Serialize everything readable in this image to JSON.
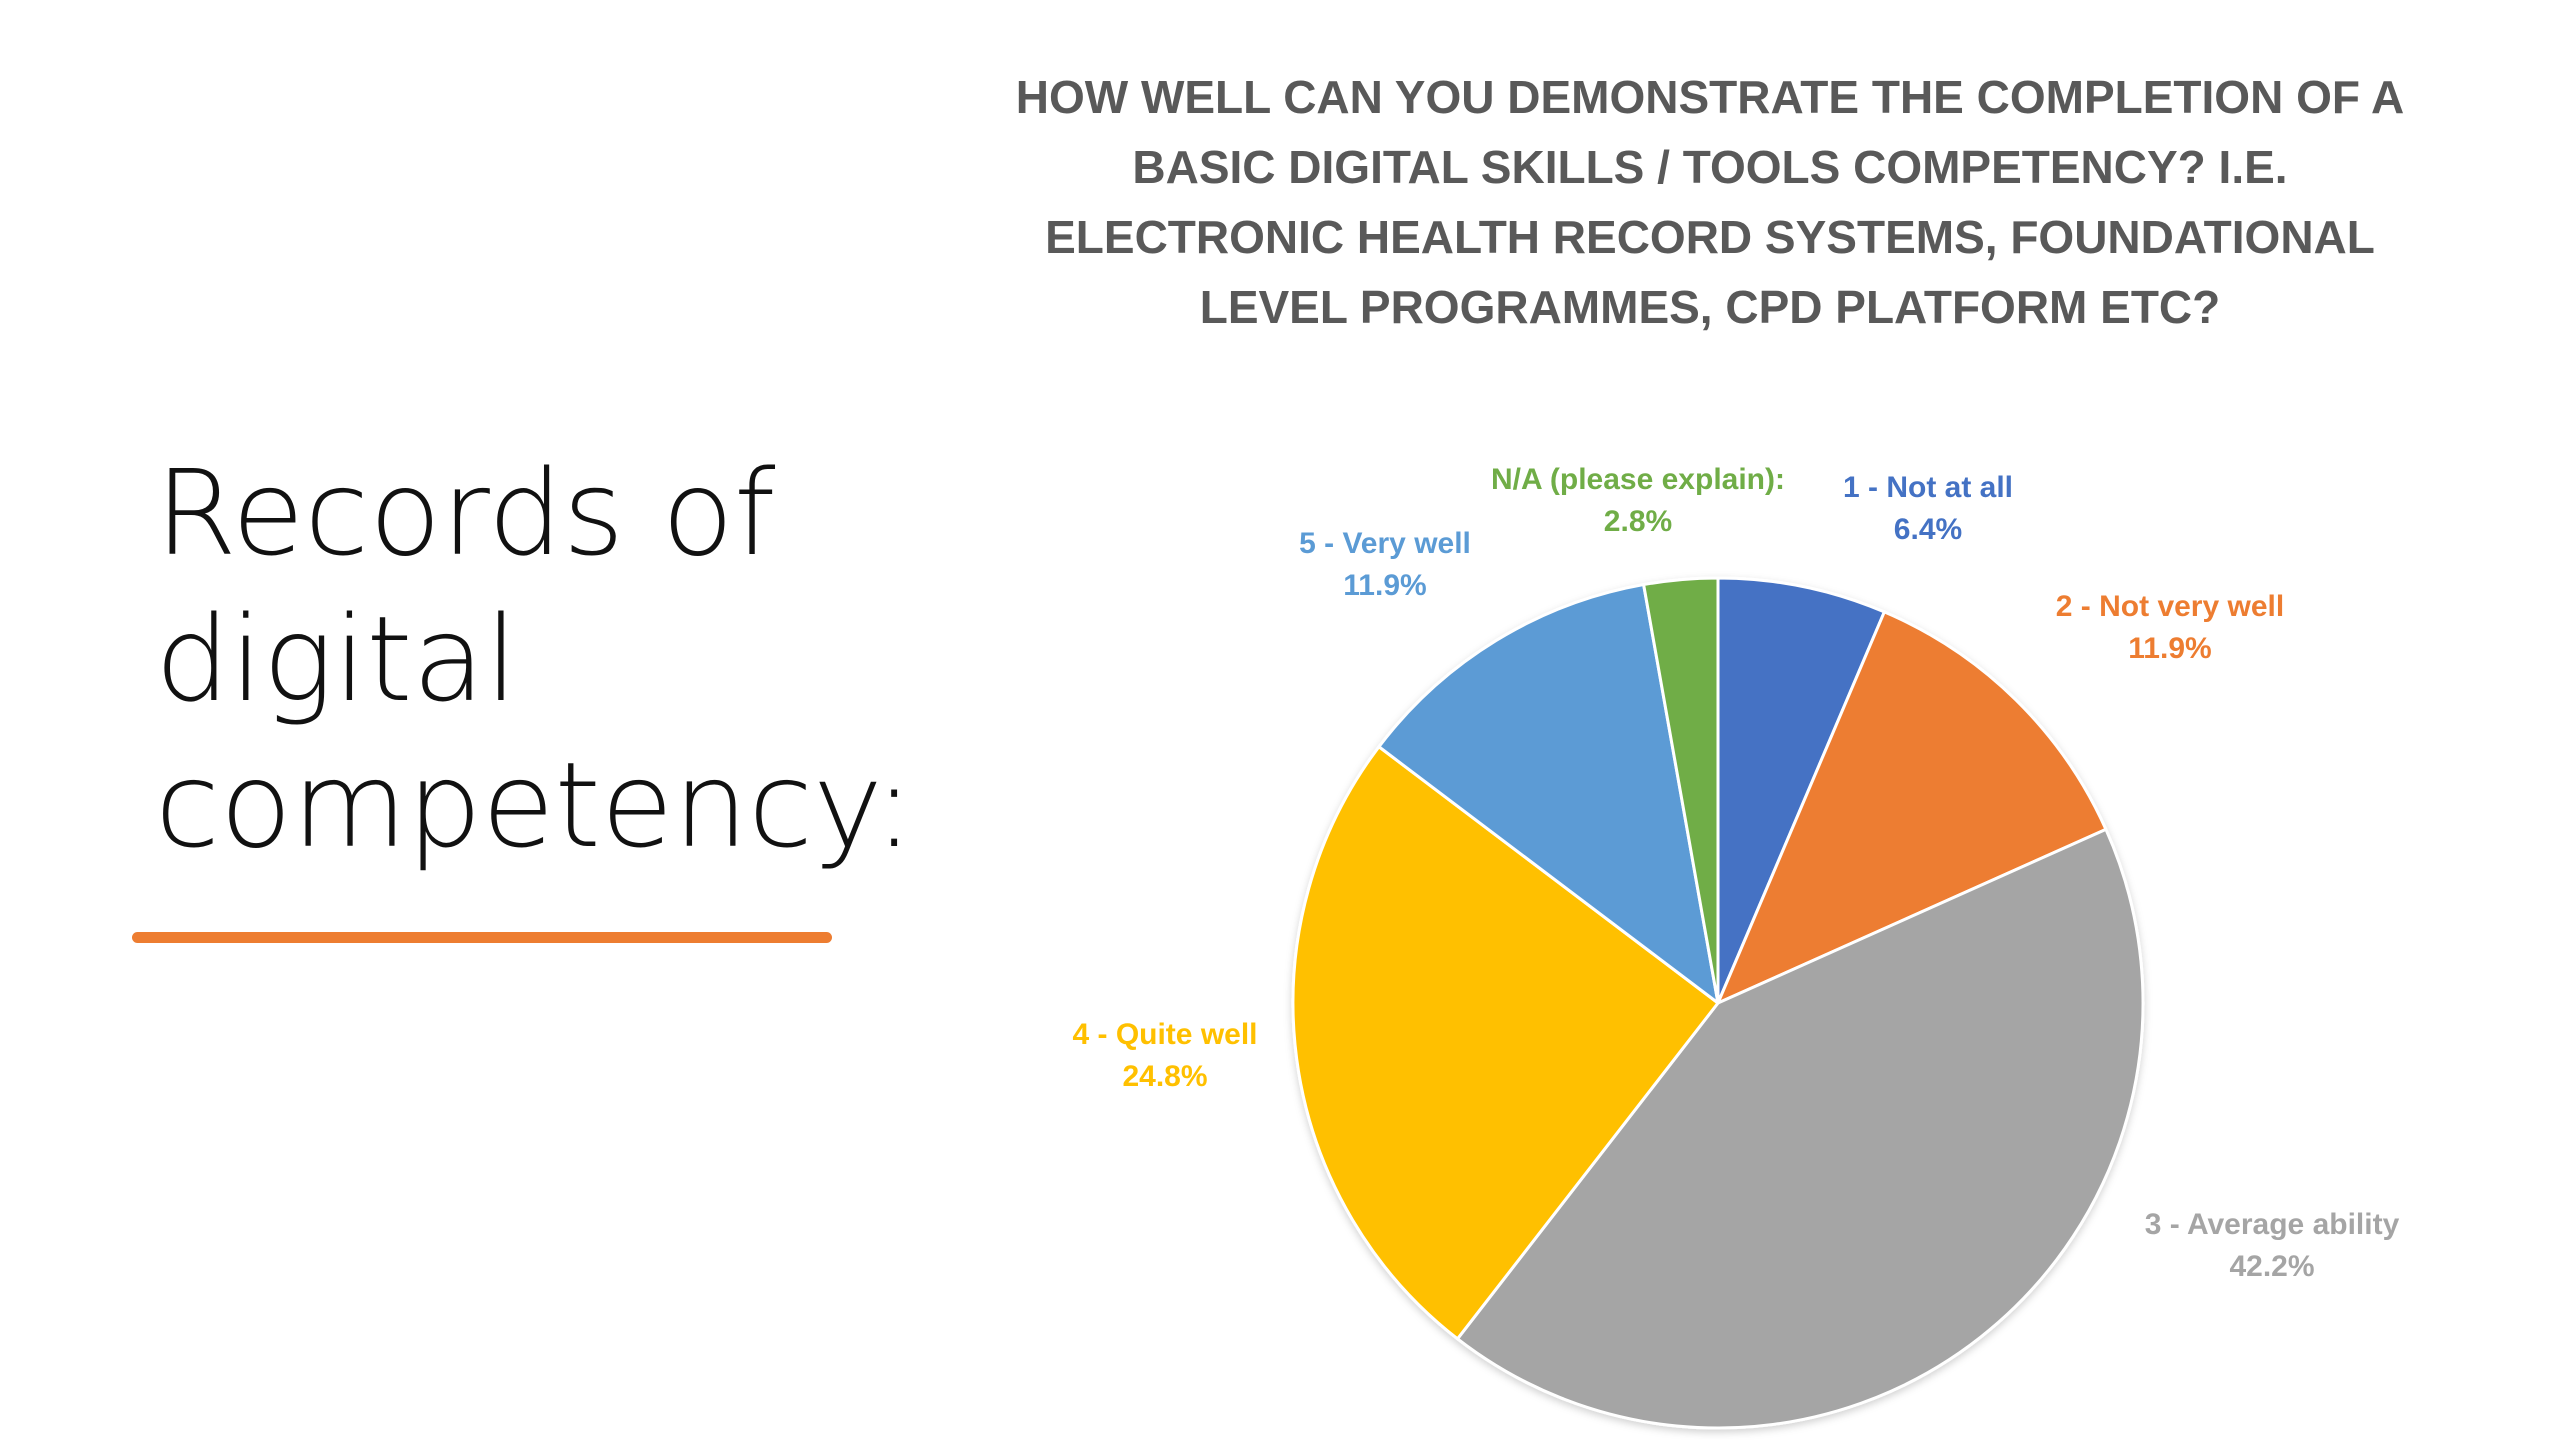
{
  "slide": {
    "title": "Records of\ndigital\ncompetency:",
    "accent_color": "#ED7D31"
  },
  "chart_data": {
    "type": "pie",
    "title": "HOW WELL CAN YOU DEMONSTRATE THE COMPLETION OF A BASIC DIGITAL SKILLS / TOOLS COMPETENCY? I.E. ELECTRONIC HEALTH RECORD SYSTEMS, FOUNDATIONAL LEVEL PROGRAMMES, CPD PLATFORM ETC?",
    "slices": [
      {
        "label": "1 - Not at all",
        "value": 6.4,
        "display": "6.4%",
        "color": "#4472C4"
      },
      {
        "label": "2 - Not very well",
        "value": 11.9,
        "display": "11.9%",
        "color": "#ED7D31"
      },
      {
        "label": "3 - Average ability",
        "value": 42.2,
        "display": "42.2%",
        "color": "#A5A5A5"
      },
      {
        "label": "4 - Quite well",
        "value": 24.8,
        "display": "24.8%",
        "color": "#FFC000"
      },
      {
        "label": "5 - Very well",
        "value": 11.9,
        "display": "11.9%",
        "color": "#5B9BD5"
      },
      {
        "label": "N/A (please explain):",
        "value": 2.8,
        "display": "2.8%",
        "color": "#70AD47"
      }
    ],
    "start_angle_deg": 0,
    "direction": "clockwise",
    "legend": "none"
  }
}
